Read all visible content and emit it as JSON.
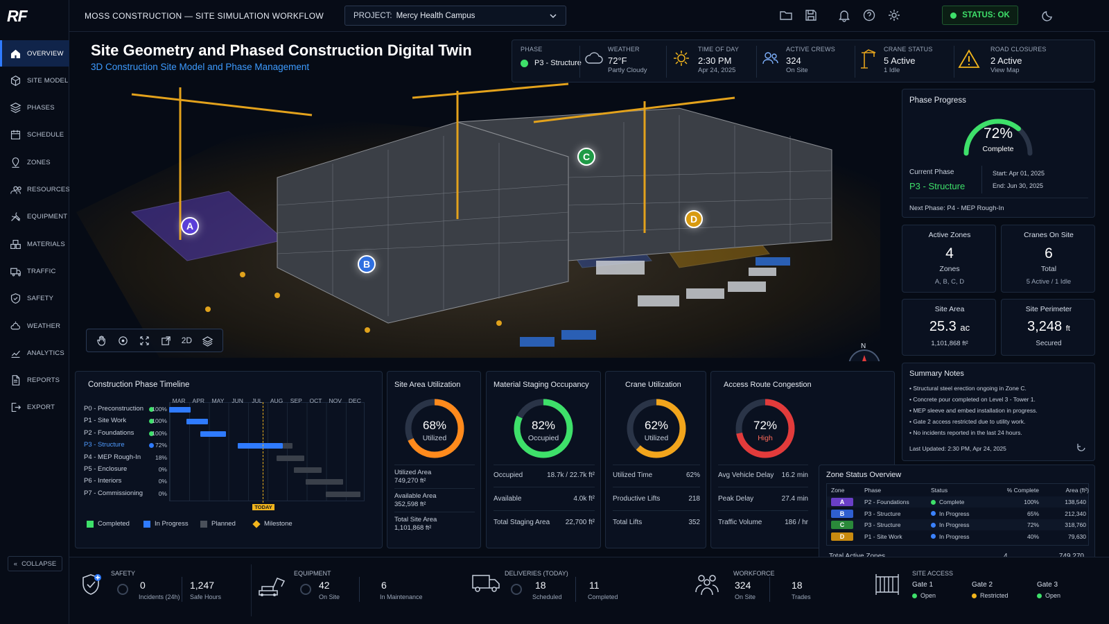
{
  "logo": "RF",
  "app_title": "MOSS CONSTRUCTION — SITE SIMULATION WORKFLOW",
  "project": {
    "label": "PROJECT:",
    "value": "Mercy Health Campus"
  },
  "status": "STATUS: OK",
  "nav": [
    {
      "label": "OVERVIEW",
      "icon": "home-icon"
    },
    {
      "label": "SITE MODEL",
      "icon": "cube-icon"
    },
    {
      "label": "PHASES",
      "icon": "layers-icon"
    },
    {
      "label": "SCHEDULE",
      "icon": "calendar-icon"
    },
    {
      "label": "ZONES",
      "icon": "map-pin-icon"
    },
    {
      "label": "RESOURCES",
      "icon": "people-icon"
    },
    {
      "label": "EQUIPMENT",
      "icon": "tools-icon"
    },
    {
      "label": "MATERIALS",
      "icon": "boxes-icon"
    },
    {
      "label": "TRAFFIC",
      "icon": "truck-icon"
    },
    {
      "label": "SAFETY",
      "icon": "shield-icon"
    },
    {
      "label": "WEATHER",
      "icon": "weather-icon"
    },
    {
      "label": "ANALYTICS",
      "icon": "chart-icon"
    },
    {
      "label": "REPORTS",
      "icon": "document-icon"
    },
    {
      "label": "EXPORT",
      "icon": "export-icon"
    }
  ],
  "collapse_label": "COLLAPSE",
  "hero": {
    "title": "Site Geometry and Phased Construction Digital Twin",
    "subtitle": "3D Construction Site Model and Phase Management",
    "markers": [
      {
        "id": "A",
        "color": "#6a4ce0"
      },
      {
        "id": "B",
        "color": "#2f6fe0"
      },
      {
        "id": "C",
        "color": "#1f9a46"
      },
      {
        "id": "D",
        "color": "#d89a10"
      }
    ],
    "toolbar_2d": "2D",
    "compass_n": "N"
  },
  "stats": [
    {
      "title": "PHASE",
      "value": "P3 - Structure",
      "sub": "",
      "icon": "green-dot"
    },
    {
      "title": "WEATHER",
      "value": "72°F",
      "sub": "Partly Cloudy",
      "icon": "cloud-icon"
    },
    {
      "title": "TIME OF DAY",
      "value": "2:30 PM",
      "sub": "Apr 24, 2025",
      "icon": "sun-icon"
    },
    {
      "title": "ACTIVE CREWS",
      "value": "324",
      "sub": "On Site",
      "icon": "people-icon"
    },
    {
      "title": "CRANE STATUS",
      "value": "5 Active",
      "sub": "1 Idle",
      "icon": "crane-icon"
    },
    {
      "title": "ROAD CLOSURES",
      "value": "2 Active",
      "sub": "View Map",
      "icon": "warning-icon"
    }
  ],
  "phase_progress": {
    "title": "Phase Progress",
    "percent": 72,
    "percent_label": "72%",
    "complete_label": "Complete",
    "current_phase_label": "Current Phase",
    "current_phase": "P3 - Structure",
    "start": "Start: Apr 01, 2025",
    "end": "End: Jun 30, 2025",
    "next_phase": "Next Phase: P4 - MEP Rough-In"
  },
  "cards": [
    {
      "title": "Active Zones",
      "value": "4",
      "unit": "",
      "sub1": "Zones",
      "sub2": "A, B, C, D"
    },
    {
      "title": "Cranes On Site",
      "value": "6",
      "unit": "",
      "sub1": "Total",
      "sub2": "5 Active / 1 Idle"
    },
    {
      "title": "Site Area",
      "value": "25.3",
      "unit": "ac",
      "sub1": "1,101,868 ft²",
      "sub2": ""
    },
    {
      "title": "Site Perimeter",
      "value": "3,248",
      "unit": "ft",
      "sub1": "Secured",
      "sub2": ""
    }
  ],
  "summary": {
    "title": "Summary Notes",
    "notes": [
      "Structural steel erection ongoing in Zone C.",
      "Concrete pour completed on Level 3 - Tower 1.",
      "MEP sleeve and embed installation in progress.",
      "Gate 2 access restricted due to utility work.",
      "No incidents reported in the last 24 hours."
    ],
    "updated": "Last Updated: 2:30 PM, Apr 24, 2025"
  },
  "timeline": {
    "title": "Construction Phase Timeline",
    "months": [
      "MAR",
      "APR",
      "MAY",
      "JUN",
      "JUL",
      "AUG",
      "SEP",
      "OCT",
      "NOV",
      "DEC"
    ],
    "phases": [
      {
        "label": "P0 - Preconstruction",
        "pct": "100%",
        "status": "complete",
        "start": 0.0,
        "end": 1.1
      },
      {
        "label": "P1 - Site Work",
        "pct": "100%",
        "status": "complete",
        "start": 0.9,
        "end": 2.0
      },
      {
        "label": "P2 - Foundations",
        "pct": "100%",
        "status": "complete",
        "start": 1.6,
        "end": 2.9
      },
      {
        "label": "P3 - Structure",
        "pct": "72%",
        "status": "progress",
        "start": 3.5,
        "end": 6.3,
        "done": 5.8
      },
      {
        "label": "P4 - MEP Rough-In",
        "pct": "18%",
        "status": "planned",
        "start": 5.5,
        "end": 6.9
      },
      {
        "label": "P5 - Enclosure",
        "pct": "0%",
        "status": "planned",
        "start": 6.4,
        "end": 7.8
      },
      {
        "label": "P6 - Interiors",
        "pct": "0%",
        "status": "planned",
        "start": 7.0,
        "end": 8.9
      },
      {
        "label": "P7 - Commissioning",
        "pct": "0%",
        "status": "planned",
        "start": 8.0,
        "end": 9.8
      }
    ],
    "today_position": 4.8,
    "today_label": "TODAY",
    "legend": [
      "Completed",
      "In Progress",
      "Planned",
      "Milestone"
    ]
  },
  "site_area": {
    "title": "Site Area Utilization",
    "percent": 68,
    "percent_label": "68%",
    "label": "Utilized",
    "rows": [
      {
        "k": "Utilized Area",
        "v": "749,270 ft²"
      },
      {
        "k": "Available Area",
        "v": "352,598 ft²"
      },
      {
        "k": "Total Site Area",
        "v": "1,101,868 ft²"
      }
    ]
  },
  "staging": {
    "title": "Material Staging Occupancy",
    "percent": 82,
    "percent_label": "82%",
    "label": "Occupied",
    "rows": [
      {
        "k": "Occupied",
        "v": "18.7k / 22.7k ft²"
      },
      {
        "k": "Available",
        "v": "4.0k ft²"
      },
      {
        "k": "Total Staging Area",
        "v": "22,700 ft²"
      }
    ]
  },
  "crane": {
    "title": "Crane Utilization",
    "percent": 62,
    "percent_label": "62%",
    "label": "Utilized",
    "rows": [
      {
        "k": "Utilized Time",
        "v": "62%"
      },
      {
        "k": "Productive Lifts",
        "v": "218"
      },
      {
        "k": "Total Lifts",
        "v": "352"
      }
    ]
  },
  "access": {
    "title": "Access Route Congestion",
    "percent": 72,
    "percent_label": "72%",
    "label": "High",
    "rows": [
      {
        "k": "Avg Vehicle Delay",
        "v": "16.2 min"
      },
      {
        "k": "Peak Delay",
        "v": "27.4 min"
      },
      {
        "k": "Traffic Volume",
        "v": "186 / hr"
      }
    ]
  },
  "zones": {
    "title": "Zone Status Overview",
    "headers": [
      "Zone",
      "Phase",
      "Status",
      "% Complete",
      "Area (ft²)"
    ],
    "rows": [
      {
        "zone": "A",
        "color": "#6a3fc7",
        "phase": "P2 - Foundations",
        "status": "Complete",
        "status_color": "#3ee06a",
        "pct": "100%",
        "area": "138,540"
      },
      {
        "zone": "B",
        "color": "#2f5fd0",
        "phase": "P3 - Structure",
        "status": "In Progress",
        "status_color": "#3b82ff",
        "pct": "65%",
        "area": "212,340"
      },
      {
        "zone": "C",
        "color": "#2a8a3a",
        "phase": "P3 - Structure",
        "status": "In Progress",
        "status_color": "#3b82ff",
        "pct": "72%",
        "area": "318,760"
      },
      {
        "zone": "D",
        "color": "#c88a10",
        "phase": "P1 - Site Work",
        "status": "In Progress",
        "status_color": "#3b82ff",
        "pct": "40%",
        "area": "79,630"
      }
    ],
    "total_label": "Total Active Zones",
    "total_count": "4",
    "total_area": "749,270"
  },
  "bottom": {
    "safety": {
      "title": "SAFETY",
      "v1": "0",
      "s1": "Incidents (24h)",
      "v2": "1,247",
      "s2": "Safe Hours"
    },
    "equipment": {
      "title": "EQUIPMENT",
      "v1": "42",
      "s1": "On Site",
      "v2": "6",
      "s2": "In Maintenance"
    },
    "deliveries": {
      "title": "DELIVERIES (TODAY)",
      "v1": "18",
      "s1": "Scheduled",
      "v2": "11",
      "s2": "Completed"
    },
    "workforce": {
      "title": "WORKFORCE",
      "v1": "324",
      "s1": "On Site",
      "v2": "18",
      "s2": "Trades"
    },
    "access": {
      "title": "SITE ACCESS",
      "gates": [
        {
          "name": "Gate 1",
          "status": "Open",
          "color": "#3ee06a"
        },
        {
          "name": "Gate 2",
          "status": "Restricted",
          "color": "#f2b51c"
        },
        {
          "name": "Gate 3",
          "status": "Open",
          "color": "#3ee06a"
        }
      ]
    }
  }
}
